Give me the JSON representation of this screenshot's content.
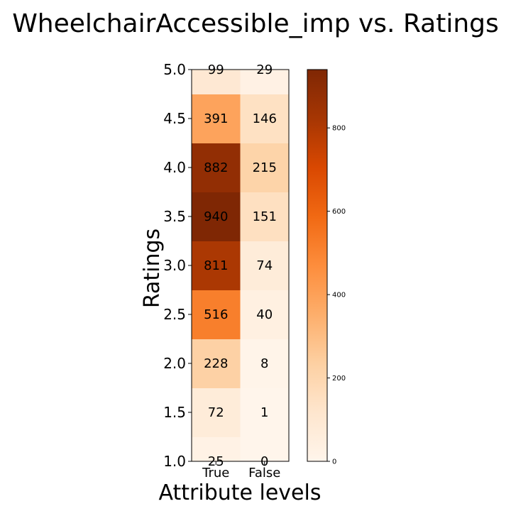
{
  "chart_data": {
    "type": "heatmap",
    "title": "WheelchairAccessible_imp vs. Ratings",
    "xlabel": "Attribute levels",
    "ylabel": "Ratings",
    "x_categories": [
      "True",
      "False"
    ],
    "y_categories": [
      "1.0",
      "1.5",
      "2.0",
      "2.5",
      "3.0",
      "3.5",
      "4.0",
      "4.5",
      "5.0"
    ],
    "y_ticks": [
      "1.0",
      "1.5",
      "2.0",
      "2.5",
      "3.0",
      "3.5",
      "4.0",
      "4.5",
      "5.0"
    ],
    "values": [
      [
        25,
        0
      ],
      [
        72,
        1
      ],
      [
        228,
        8
      ],
      [
        516,
        40
      ],
      [
        811,
        74
      ],
      [
        940,
        151
      ],
      [
        882,
        215
      ],
      [
        391,
        146
      ],
      [
        99,
        29
      ]
    ],
    "colorbar": {
      "cmap": "Oranges",
      "range": [
        0,
        940
      ],
      "ticks": [
        "0",
        "200",
        "400",
        "600",
        "800"
      ]
    },
    "grid": false,
    "colors": {
      "low": "#fff5eb",
      "mid": "#fd8d3c",
      "high": "#7f2704"
    }
  }
}
